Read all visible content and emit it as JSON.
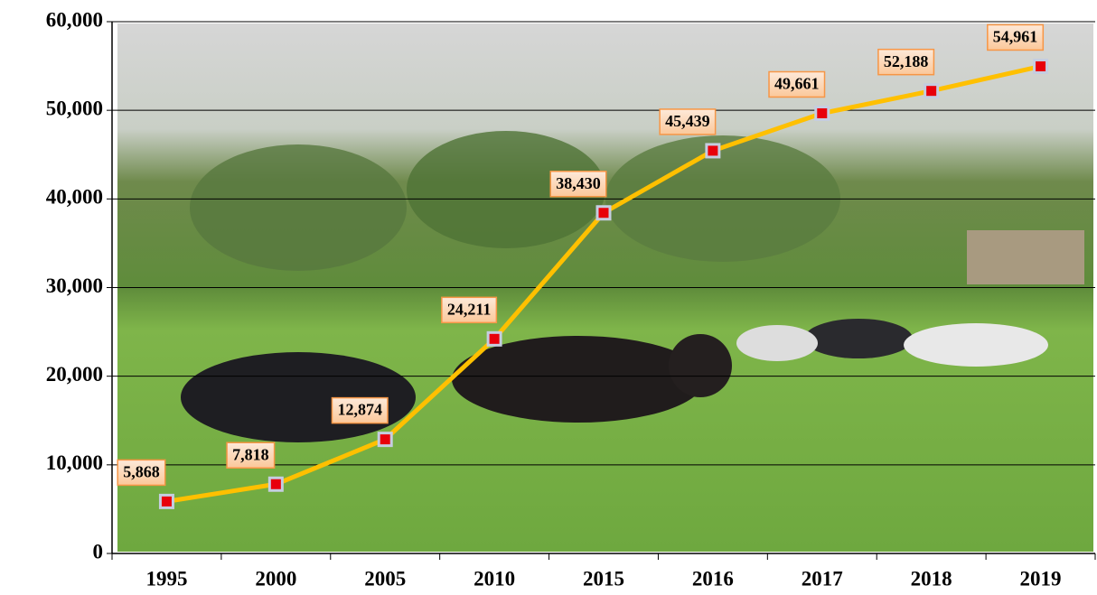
{
  "chart_data": {
    "type": "line",
    "categories": [
      "1995",
      "2000",
      "2005",
      "2010",
      "2015",
      "2016",
      "2017",
      "2018",
      "2019"
    ],
    "values": [
      5868,
      7818,
      12874,
      24211,
      38430,
      45439,
      49661,
      52188,
      54961
    ],
    "value_labels": [
      "5,868",
      "7,818",
      "12,874",
      "24,211",
      "38,430",
      "45,439",
      "49,661",
      "52,188",
      "54,961"
    ],
    "color": "#ffc000",
    "marker_color": "#e8000b",
    "ylim": [
      0,
      60000
    ],
    "yticks": [
      {
        "value": 0,
        "label": "0"
      },
      {
        "value": 10000,
        "label": "10,000"
      },
      {
        "value": 20000,
        "label": "20,000"
      },
      {
        "value": 30000,
        "label": "30,000"
      },
      {
        "value": 40000,
        "label": "40,000"
      },
      {
        "value": 50000,
        "label": "50,000"
      },
      {
        "value": 60000,
        "label": "60,000"
      }
    ],
    "grid": true
  }
}
